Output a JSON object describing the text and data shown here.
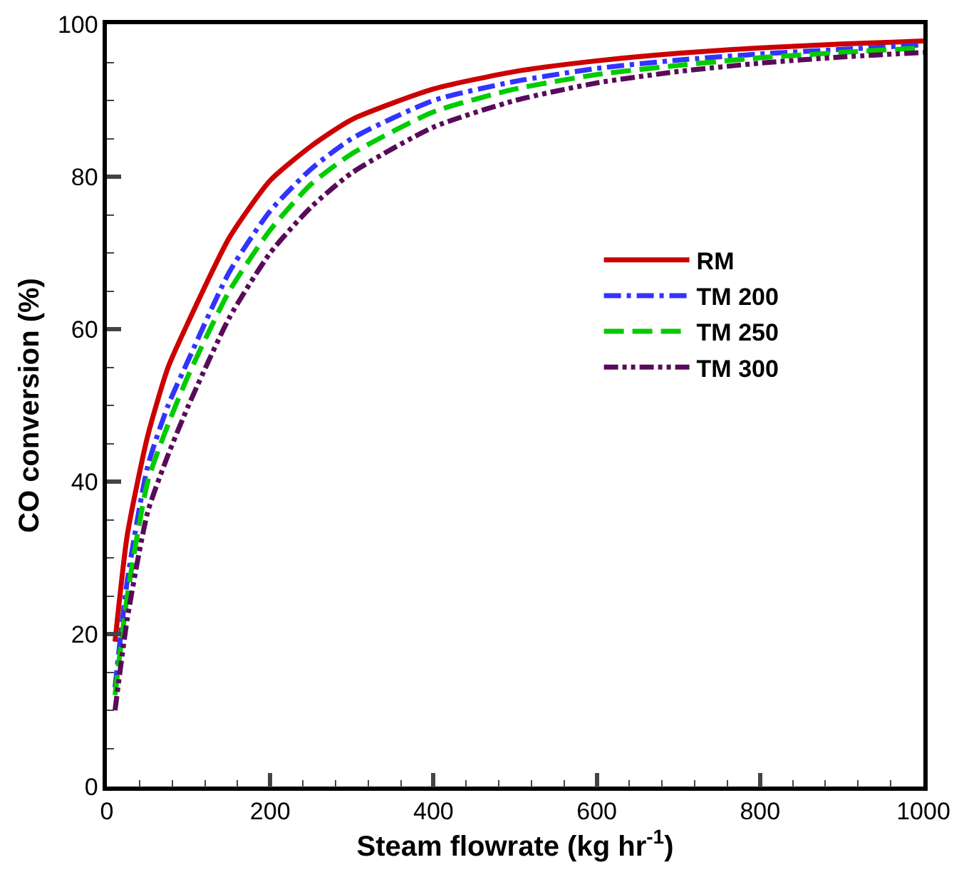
{
  "chart_data": {
    "type": "line",
    "xlabel": "Steam flowrate (kg hr$^{-1}$)",
    "ylabel": "CO conversion (%)",
    "x": [
      10,
      25,
      50,
      75,
      100,
      150,
      200,
      250,
      300,
      400,
      500,
      600,
      700,
      800,
      900,
      1000
    ],
    "series": [
      {
        "name": "RM",
        "color": "#cc0000",
        "line_style": "solid",
        "values": [
          19,
          33,
          46,
          55,
          61,
          72,
          79.5,
          84,
          87.5,
          91.5,
          93.8,
          95.2,
          96.2,
          96.9,
          97.4,
          97.8
        ]
      },
      {
        "name": "TM 200",
        "color": "#3333ff",
        "line_style": "dashdot",
        "values": [
          13,
          27,
          42,
          50,
          56,
          67.5,
          75.5,
          81,
          85,
          90,
          92.5,
          94.2,
          95.3,
          96.1,
          96.7,
          97.3
        ]
      },
      {
        "name": "TM 250",
        "color": "#00cc00",
        "line_style": "dashed",
        "values": [
          12,
          25,
          40,
          47.5,
          54,
          65,
          73,
          79,
          83,
          88.5,
          91.5,
          93.4,
          94.6,
          95.6,
          96.3,
          96.9
        ]
      },
      {
        "name": "TM 300",
        "color": "#5a0a5a",
        "line_style": "dashdotdot",
        "values": [
          10,
          22,
          36,
          43.5,
          50,
          61.5,
          70,
          76,
          80.5,
          86.5,
          90,
          92.3,
          93.8,
          94.9,
          95.7,
          96.3
        ]
      }
    ],
    "xlim": [
      0,
      1000
    ],
    "xticks": [
      0,
      200,
      400,
      600,
      800,
      1000
    ],
    "ylim": [
      0,
      100
    ],
    "yticks": [
      0,
      20,
      40,
      60,
      80,
      100
    ],
    "grid": false,
    "legend": "right",
    "marker": "none"
  }
}
